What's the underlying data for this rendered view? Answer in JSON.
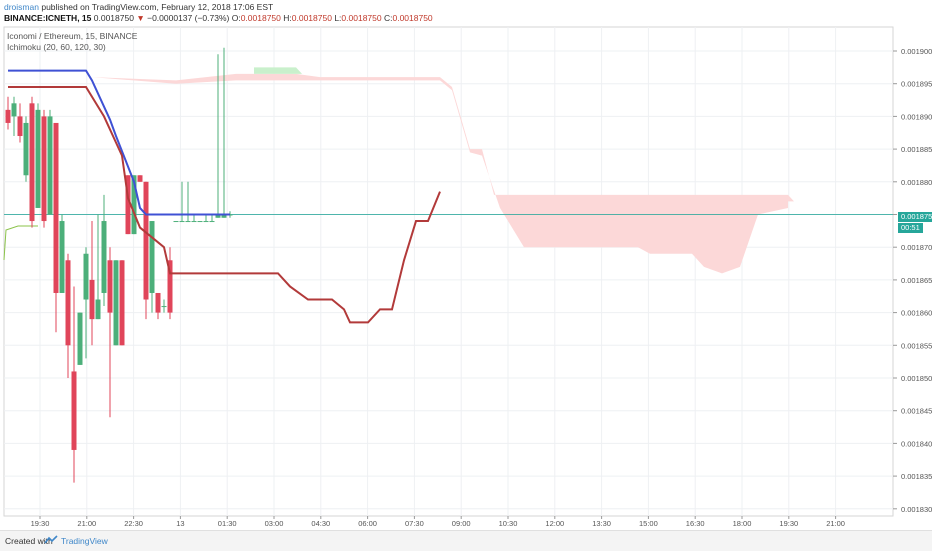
{
  "header": {
    "author": "droisman",
    "published_text": "published on TradingView.com, February 12, 2018 17:06 EST",
    "symbol": "BINANCE:ICNETH, 15",
    "last_price": "0.0018750",
    "change_arrow": "▼",
    "change": "−0.0000137 (−0.73%)",
    "o_label": "O:",
    "o_value": "0.0018750",
    "h_label": "H:",
    "h_value": "0.0018750",
    "l_label": "L:",
    "l_value": "0.0018750",
    "c_label": "C:",
    "c_value": "0.0018750"
  },
  "legend": {
    "title": "Iconomi / Ethereum, 15, BINANCE",
    "indicator": "Ichimoku (20, 60, 120, 30)"
  },
  "price_tags": {
    "last_price": "0.0018750",
    "countdown": "00:51"
  },
  "footer": {
    "created_with": "Created with",
    "brand": "TradingView"
  },
  "colors": {
    "up": "#4caf7a",
    "down": "#e0455a",
    "tenkan": "#3f51d4",
    "kijun": "#b23a3a",
    "cloud_bear": "#fcd8d8",
    "cloud_bull": "#c9f0cc",
    "last_price_line": "#26a69a",
    "grid": "#eef0f3"
  },
  "chart_data": {
    "type": "candlestick",
    "y_ticks": [
      "0.0019000",
      "0.0018950",
      "0.0018900",
      "0.0018850",
      "0.0018800",
      "0.0018750",
      "0.0018700",
      "0.0018650",
      "0.0018600",
      "0.0018550",
      "0.0018500",
      "0.0018450",
      "0.0018400",
      "0.0018350",
      "0.0018300"
    ],
    "ylim": [
      0.00183,
      0.0019
    ],
    "x_ticks": [
      "19:30",
      "21:00",
      "22:30",
      "13",
      "01:30",
      "03:00",
      "04:30",
      "06:00",
      "07:30",
      "09:00",
      "10:30",
      "12:00",
      "13:30",
      "15:00",
      "16:30",
      "18:00",
      "19:30",
      "21:00"
    ],
    "grid": true,
    "candles": [
      {
        "o": 0.001891,
        "h": 0.001893,
        "l": 0.001888,
        "c": 0.001889,
        "dir": "down"
      },
      {
        "o": 0.00189,
        "h": 0.001893,
        "l": 0.001887,
        "c": 0.001892,
        "dir": "up"
      },
      {
        "o": 0.00189,
        "h": 0.001892,
        "l": 0.001886,
        "c": 0.001887,
        "dir": "down"
      },
      {
        "o": 0.001881,
        "h": 0.00189,
        "l": 0.00188,
        "c": 0.001889,
        "dir": "up"
      },
      {
        "o": 0.001892,
        "h": 0.001893,
        "l": 0.001873,
        "c": 0.001874,
        "dir": "down"
      },
      {
        "o": 0.001876,
        "h": 0.001892,
        "l": 0.001876,
        "c": 0.001891,
        "dir": "up"
      },
      {
        "o": 0.00189,
        "h": 0.001891,
        "l": 0.001873,
        "c": 0.001874,
        "dir": "down"
      },
      {
        "o": 0.001875,
        "h": 0.001891,
        "l": 0.001875,
        "c": 0.00189,
        "dir": "up"
      },
      {
        "o": 0.001889,
        "h": 0.001889,
        "l": 0.001857,
        "c": 0.001863,
        "dir": "down"
      },
      {
        "o": 0.001863,
        "h": 0.001875,
        "l": 0.001863,
        "c": 0.001874,
        "dir": "up"
      },
      {
        "o": 0.001868,
        "h": 0.001869,
        "l": 0.00185,
        "c": 0.001855,
        "dir": "down"
      },
      {
        "o": 0.001851,
        "h": 0.001864,
        "l": 0.001834,
        "c": 0.001839,
        "dir": "down"
      },
      {
        "o": 0.001852,
        "h": 0.00186,
        "l": 0.001852,
        "c": 0.00186,
        "dir": "up"
      },
      {
        "o": 0.001862,
        "h": 0.00187,
        "l": 0.001853,
        "c": 0.001869,
        "dir": "up"
      },
      {
        "o": 0.001865,
        "h": 0.001874,
        "l": 0.001855,
        "c": 0.001859,
        "dir": "down"
      },
      {
        "o": 0.001859,
        "h": 0.001875,
        "l": 0.001859,
        "c": 0.001862,
        "dir": "up"
      },
      {
        "o": 0.001863,
        "h": 0.001878,
        "l": 0.001861,
        "c": 0.001874,
        "dir": "up"
      },
      {
        "o": 0.001868,
        "h": 0.00187,
        "l": 0.001844,
        "c": 0.00186,
        "dir": "down"
      },
      {
        "o": 0.001855,
        "h": 0.001868,
        "l": 0.001855,
        "c": 0.001868,
        "dir": "up"
      },
      {
        "o": 0.001868,
        "h": 0.001868,
        "l": 0.001855,
        "c": 0.001855,
        "dir": "down"
      },
      {
        "o": 0.001881,
        "h": 0.001881,
        "l": 0.001872,
        "c": 0.001872,
        "dir": "down"
      },
      {
        "o": 0.001872,
        "h": 0.001881,
        "l": 0.001872,
        "c": 0.001881,
        "dir": "up"
      },
      {
        "o": 0.001881,
        "h": 0.001881,
        "l": 0.00188,
        "c": 0.00188,
        "dir": "down"
      },
      {
        "o": 0.00188,
        "h": 0.00188,
        "l": 0.001859,
        "c": 0.001862,
        "dir": "down"
      },
      {
        "o": 0.001863,
        "h": 0.001874,
        "l": 0.00186,
        "c": 0.001874,
        "dir": "up"
      },
      {
        "o": 0.001863,
        "h": 0.001863,
        "l": 0.001859,
        "c": 0.00186,
        "dir": "down"
      },
      {
        "o": 0.001861,
        "h": 0.001862,
        "l": 0.00186,
        "c": 0.001861,
        "dir": "up"
      },
      {
        "o": 0.001868,
        "h": 0.00187,
        "l": 0.001859,
        "c": 0.00186,
        "dir": "down"
      },
      {
        "o": 0.001874,
        "h": 0.001874,
        "l": 0.001874,
        "c": 0.001874,
        "dir": "up"
      },
      {
        "o": 0.001874,
        "h": 0.00188,
        "l": 0.001874,
        "c": 0.001874,
        "dir": "up"
      },
      {
        "o": 0.001874,
        "h": 0.00188,
        "l": 0.001874,
        "c": 0.001874,
        "dir": "up"
      },
      {
        "o": 0.001874,
        "h": 0.001875,
        "l": 0.001874,
        "c": 0.001874,
        "dir": "up"
      },
      {
        "o": 0.001874,
        "h": 0.001874,
        "l": 0.001874,
        "c": 0.001874,
        "dir": "up"
      },
      {
        "o": 0.001874,
        "h": 0.001875,
        "l": 0.001874,
        "c": 0.001874,
        "dir": "up"
      },
      {
        "o": 0.001874,
        "h": 0.001875,
        "l": 0.001874,
        "c": 0.001874,
        "dir": "up"
      },
      {
        "o": 0.0018745,
        "h": 0.0018995,
        "l": 0.0018745,
        "c": 0.001875,
        "dir": "up"
      },
      {
        "o": 0.0018745,
        "h": 0.0019005,
        "l": 0.0018745,
        "c": 0.001875,
        "dir": "up"
      },
      {
        "o": 0.001875,
        "h": 0.0018755,
        "l": 0.0018745,
        "c": 0.001875,
        "dir": "up"
      }
    ],
    "series": [
      {
        "name": "tenkan",
        "points": [
          [
            0,
            0.001897
          ],
          [
            13,
            0.001897
          ],
          [
            14,
            0.0018955
          ],
          [
            17,
            0.0018895
          ],
          [
            18,
            0.001887
          ],
          [
            21,
            0.00188
          ],
          [
            22,
            0.001876
          ],
          [
            23,
            0.001875
          ],
          [
            37,
            0.001875
          ]
        ]
      },
      {
        "name": "kijun",
        "points": [
          [
            0,
            0.0018945
          ],
          [
            13,
            0.0018945
          ],
          [
            16,
            0.00189
          ],
          [
            19,
            0.001884
          ],
          [
            20,
            0.0018775
          ],
          [
            22,
            0.001873
          ],
          [
            26,
            0.00187
          ],
          [
            27,
            0.001866
          ],
          [
            45,
            0.001866
          ],
          [
            47,
            0.001864
          ],
          [
            50,
            0.001862
          ],
          [
            54,
            0.001862
          ],
          [
            56,
            0.0018605
          ],
          [
            57,
            0.0018585
          ],
          [
            60,
            0.0018585
          ],
          [
            62,
            0.0018605
          ],
          [
            64,
            0.0018605
          ],
          [
            66,
            0.001868
          ],
          [
            68,
            0.001874
          ],
          [
            70,
            0.001874
          ],
          [
            72,
            0.0018785
          ]
        ]
      }
    ],
    "cloud": [
      {
        "kind": "bear",
        "upper": [
          [
            14,
            0.001896
          ],
          [
            28,
            0.0018955
          ],
          [
            38,
            0.0018965
          ],
          [
            48,
            0.0018965
          ],
          [
            52,
            0.001896
          ],
          [
            72,
            0.001896
          ],
          [
            74,
            0.0018945
          ],
          [
            77,
            0.001885
          ],
          [
            79,
            0.001885
          ],
          [
            81,
            0.001878
          ],
          [
            100,
            0.001878
          ],
          [
            122,
            0.001878
          ],
          [
            130,
            0.001878
          ],
          [
            131,
            0.001877
          ],
          [
            130,
            0.001877
          ]
        ],
        "lower": [
          [
            14,
            0.001896
          ],
          [
            28,
            0.001895
          ],
          [
            38,
            0.0018955
          ],
          [
            48,
            0.0018955
          ],
          [
            52,
            0.0018955
          ],
          [
            72,
            0.0018955
          ],
          [
            74,
            0.001894
          ],
          [
            77,
            0.0018845
          ],
          [
            79,
            0.001884
          ],
          [
            82,
            0.001876
          ],
          [
            86,
            0.00187
          ],
          [
            105,
            0.00187
          ],
          [
            107,
            0.001869
          ],
          [
            114,
            0.001869
          ],
          [
            116,
            0.001867
          ],
          [
            119,
            0.001866
          ],
          [
            122,
            0.001867
          ],
          [
            125,
            0.001875
          ],
          [
            130,
            0.001876
          ]
        ]
      },
      {
        "kind": "bull",
        "upper": [
          [
            41,
            0.0018975
          ],
          [
            48,
            0.0018975
          ],
          [
            49,
            0.0018965
          ]
        ],
        "lower": [
          [
            41,
            0.0018965
          ],
          [
            48,
            0.0018965
          ],
          [
            49,
            0.0018965
          ]
        ]
      }
    ],
    "last_price": 0.001875
  }
}
